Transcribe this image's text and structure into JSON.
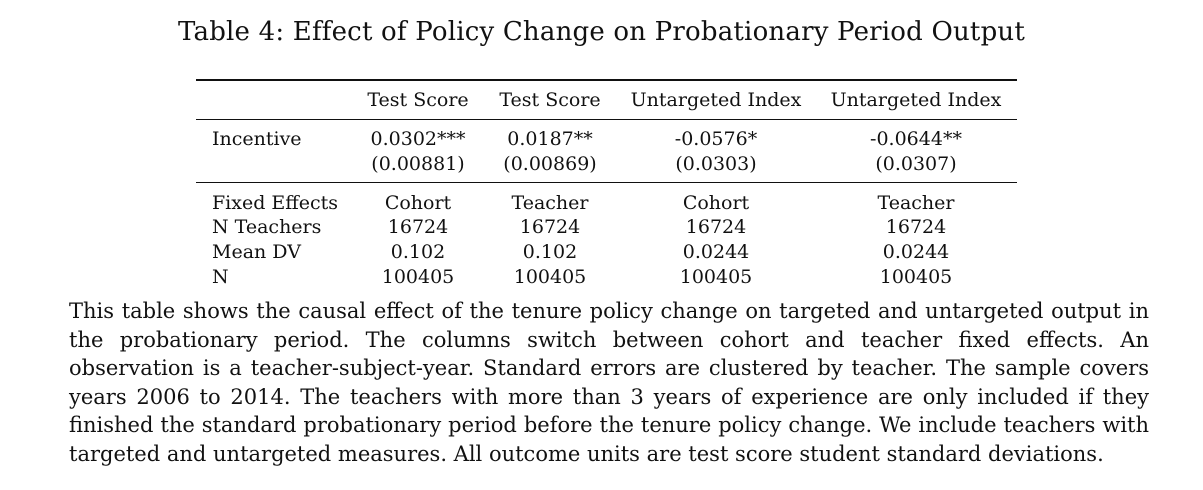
{
  "caption": "Table 4: Effect of Policy Change on Probationary Period Output",
  "table": {
    "headers": [
      "",
      "Test Score",
      "Test Score",
      "Untargeted Index",
      "Untargeted Index"
    ],
    "incentive": {
      "label": "Incentive",
      "coefs": [
        "0.0302***",
        "0.0187**",
        "-0.0576*",
        "-0.0644**"
      ],
      "ses": [
        "(0.00881)",
        "(0.00869)",
        "(0.0303)",
        "(0.0307)"
      ]
    },
    "stats": [
      {
        "label": "Fixed Effects",
        "values": [
          "Cohort",
          "Teacher",
          "Cohort",
          "Teacher"
        ]
      },
      {
        "label": "N Teachers",
        "values": [
          "16724",
          "16724",
          "16724",
          "16724"
        ]
      },
      {
        "label": "Mean DV",
        "values": [
          "0.102",
          "0.102",
          "0.0244",
          "0.0244"
        ]
      },
      {
        "label": "N",
        "values": [
          "100405",
          "100405",
          "100405",
          "100405"
        ]
      }
    ]
  },
  "note": "This table shows the causal effect of the tenure policy change on targeted and untargeted output in the probationary period. The columns switch between cohort and teacher fixed effects. An observation is a teacher-subject-year. Standard errors are clustered by teacher. The sample covers years 2006 to 2014. The teachers with more than 3 years of experience are only included if they finished the standard probationary period before the tenure policy change. We include teachers with targeted and untargeted measures. All outcome units are test score student standard deviations."
}
